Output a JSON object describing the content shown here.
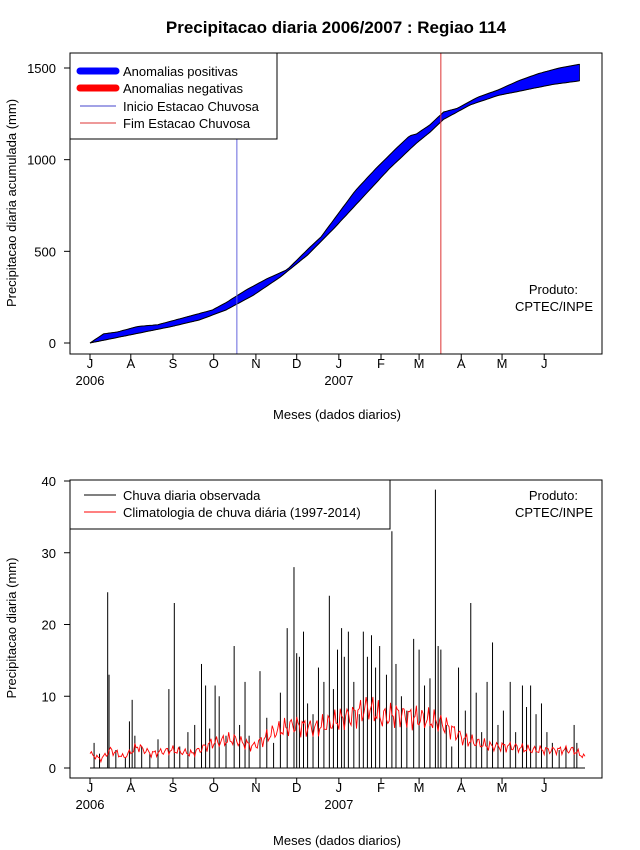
{
  "chart_data": [
    {
      "type": "area",
      "title": "Precipitacao diaria 2006/2007 : Regiao 114",
      "xlabel": "Meses (dados diarios)",
      "ylabel": "Precipitacao diaria acumulada (mm)",
      "ylim": [
        0,
        1550
      ],
      "yticks": [
        0,
        500,
        1000,
        1500
      ],
      "months": [
        "J",
        "A",
        "S",
        "O",
        "N",
        "D",
        "J",
        "F",
        "M",
        "A",
        "M",
        "J"
      ],
      "year_labels": [
        {
          "month_index": 0,
          "label": "2006"
        },
        {
          "month_index": 6,
          "label": "2007"
        }
      ],
      "legend": [
        "Anomalias positivas",
        "Anomalias negativas",
        "Inicio Estacao Chuvosa",
        "Fim Estacao Chuvosa"
      ],
      "colors": {
        "positive": "#0000ff",
        "negative": "#ff0000",
        "start": "#6666dd",
        "end": "#dd3333"
      },
      "x_days_to_month": [
        0,
        30,
        61,
        91,
        122,
        152,
        183,
        214,
        242,
        273,
        303,
        334,
        364
      ],
      "observed_accumulated": {
        "day": [
          0,
          10,
          20,
          35,
          50,
          60,
          75,
          90,
          100,
          115,
          130,
          145,
          160,
          170,
          180,
          195,
          210,
          225,
          235,
          240,
          250,
          260,
          270,
          285,
          300,
          315,
          330,
          345,
          360
        ],
        "mm": [
          0,
          50,
          60,
          90,
          100,
          120,
          150,
          180,
          220,
          290,
          350,
          400,
          510,
          580,
          680,
          830,
          950,
          1060,
          1130,
          1140,
          1190,
          1260,
          1280,
          1340,
          1380,
          1430,
          1470,
          1500,
          1520
        ]
      },
      "climatology_accumulated": {
        "day": [
          0,
          20,
          40,
          60,
          80,
          100,
          120,
          140,
          160,
          180,
          200,
          220,
          240,
          250,
          260,
          280,
          300,
          320,
          340,
          360
        ],
        "mm": [
          0,
          30,
          60,
          90,
          125,
          180,
          260,
          360,
          480,
          630,
          790,
          950,
          1090,
          1150,
          1220,
          1300,
          1350,
          1380,
          1410,
          1430
        ]
      },
      "season_start_day": 108,
      "season_end_day": 258,
      "product_note": [
        "Produto:",
        "CPTEC/INPE"
      ]
    },
    {
      "type": "bar",
      "xlabel": "Meses (dados diarios)",
      "ylabel": "Precipitacao diaria (mm)",
      "ylim": [
        0,
        40
      ],
      "yticks": [
        0,
        10,
        20,
        30,
        40
      ],
      "months": [
        "J",
        "A",
        "S",
        "O",
        "N",
        "D",
        "J",
        "F",
        "M",
        "A",
        "M",
        "J"
      ],
      "year_labels": [
        {
          "month_index": 0,
          "label": "2006"
        },
        {
          "month_index": 6,
          "label": "2007"
        }
      ],
      "legend": [
        "Chuva diaria observada",
        "Climatologia de chuva diária (1997-2014)"
      ],
      "colors": {
        "observed": "#000000",
        "climatology": "#ff0000"
      },
      "spikes": [
        {
          "day": 3,
          "mm": 3.5
        },
        {
          "day": 7,
          "mm": 2.0
        },
        {
          "day": 13,
          "mm": 24.5
        },
        {
          "day": 14,
          "mm": 13.0
        },
        {
          "day": 19,
          "mm": 2.5
        },
        {
          "day": 26,
          "mm": 1.5
        },
        {
          "day": 29,
          "mm": 6.5
        },
        {
          "day": 31,
          "mm": 9.5
        },
        {
          "day": 33,
          "mm": 4.5
        },
        {
          "day": 38,
          "mm": 3.0
        },
        {
          "day": 44,
          "mm": 2.0
        },
        {
          "day": 50,
          "mm": 4.0
        },
        {
          "day": 58,
          "mm": 11.0
        },
        {
          "day": 62,
          "mm": 23.0
        },
        {
          "day": 66,
          "mm": 3.0
        },
        {
          "day": 72,
          "mm": 5.0
        },
        {
          "day": 77,
          "mm": 6.0
        },
        {
          "day": 82,
          "mm": 14.5
        },
        {
          "day": 85,
          "mm": 11.5
        },
        {
          "day": 88,
          "mm": 5.5
        },
        {
          "day": 92,
          "mm": 11.5
        },
        {
          "day": 95,
          "mm": 10.0
        },
        {
          "day": 100,
          "mm": 4.5
        },
        {
          "day": 106,
          "mm": 17.0
        },
        {
          "day": 110,
          "mm": 6.0
        },
        {
          "day": 114,
          "mm": 12.0
        },
        {
          "day": 117,
          "mm": 4.5
        },
        {
          "day": 125,
          "mm": 13.5
        },
        {
          "day": 130,
          "mm": 7.0
        },
        {
          "day": 135,
          "mm": 3.5
        },
        {
          "day": 140,
          "mm": 10.5
        },
        {
          "day": 145,
          "mm": 19.5
        },
        {
          "day": 150,
          "mm": 28.0
        },
        {
          "day": 152,
          "mm": 16.0
        },
        {
          "day": 154,
          "mm": 15.5
        },
        {
          "day": 157,
          "mm": 19.0
        },
        {
          "day": 160,
          "mm": 9.0
        },
        {
          "day": 164,
          "mm": 7.5
        },
        {
          "day": 168,
          "mm": 14.0
        },
        {
          "day": 172,
          "mm": 12.0
        },
        {
          "day": 176,
          "mm": 24.0
        },
        {
          "day": 179,
          "mm": 11.0
        },
        {
          "day": 182,
          "mm": 16.5
        },
        {
          "day": 185,
          "mm": 19.5
        },
        {
          "day": 187,
          "mm": 15.5
        },
        {
          "day": 190,
          "mm": 19.0
        },
        {
          "day": 194,
          "mm": 12.0
        },
        {
          "day": 198,
          "mm": 7.5
        },
        {
          "day": 201,
          "mm": 19.0
        },
        {
          "day": 204,
          "mm": 15.5
        },
        {
          "day": 207,
          "mm": 18.5
        },
        {
          "day": 210,
          "mm": 14.0
        },
        {
          "day": 213,
          "mm": 17.0
        },
        {
          "day": 218,
          "mm": 13.0
        },
        {
          "day": 222,
          "mm": 33.0
        },
        {
          "day": 225,
          "mm": 14.5
        },
        {
          "day": 229,
          "mm": 10.0
        },
        {
          "day": 233,
          "mm": 8.0
        },
        {
          "day": 238,
          "mm": 18.0
        },
        {
          "day": 242,
          "mm": 16.5
        },
        {
          "day": 246,
          "mm": 11.5
        },
        {
          "day": 250,
          "mm": 12.5
        },
        {
          "day": 254,
          "mm": 38.8
        },
        {
          "day": 256,
          "mm": 17.0
        },
        {
          "day": 258,
          "mm": 16.5
        },
        {
          "day": 262,
          "mm": 6.0
        },
        {
          "day": 266,
          "mm": 3.0
        },
        {
          "day": 271,
          "mm": 14.0
        },
        {
          "day": 276,
          "mm": 8.0
        },
        {
          "day": 280,
          "mm": 23.0
        },
        {
          "day": 284,
          "mm": 10.5
        },
        {
          "day": 288,
          "mm": 5.0
        },
        {
          "day": 292,
          "mm": 12.0
        },
        {
          "day": 296,
          "mm": 17.5
        },
        {
          "day": 300,
          "mm": 6.0
        },
        {
          "day": 304,
          "mm": 8.0
        },
        {
          "day": 309,
          "mm": 12.0
        },
        {
          "day": 313,
          "mm": 5.0
        },
        {
          "day": 318,
          "mm": 11.5
        },
        {
          "day": 321,
          "mm": 8.5
        },
        {
          "day": 324,
          "mm": 11.5
        },
        {
          "day": 328,
          "mm": 7.5
        },
        {
          "day": 332,
          "mm": 9.0
        },
        {
          "day": 336,
          "mm": 5.0
        },
        {
          "day": 340,
          "mm": 3.5
        },
        {
          "day": 345,
          "mm": 2.5
        },
        {
          "day": 350,
          "mm": 3.0
        },
        {
          "day": 356,
          "mm": 6.0
        },
        {
          "day": 358,
          "mm": 3.5
        }
      ],
      "climatology_curve": {
        "day": [
          0,
          8,
          15,
          25,
          35,
          45,
          60,
          75,
          90,
          105,
          120,
          135,
          150,
          165,
          180,
          195,
          205,
          215,
          225,
          240,
          255,
          265,
          275,
          285,
          295,
          310,
          325,
          340,
          355,
          364
        ],
        "mm": [
          2.0,
          1.2,
          2.5,
          1.5,
          3.0,
          2.0,
          2.5,
          2.0,
          3.5,
          4.0,
          3.0,
          5.0,
          6.0,
          5.5,
          6.5,
          7.5,
          8.5,
          7.0,
          7.5,
          7.0,
          6.5,
          5.5,
          4.0,
          3.5,
          3.0,
          3.0,
          2.5,
          2.5,
          2.5,
          1.5
        ]
      },
      "product_note": [
        "Produto:",
        "CPTEC/INPE"
      ]
    }
  ]
}
